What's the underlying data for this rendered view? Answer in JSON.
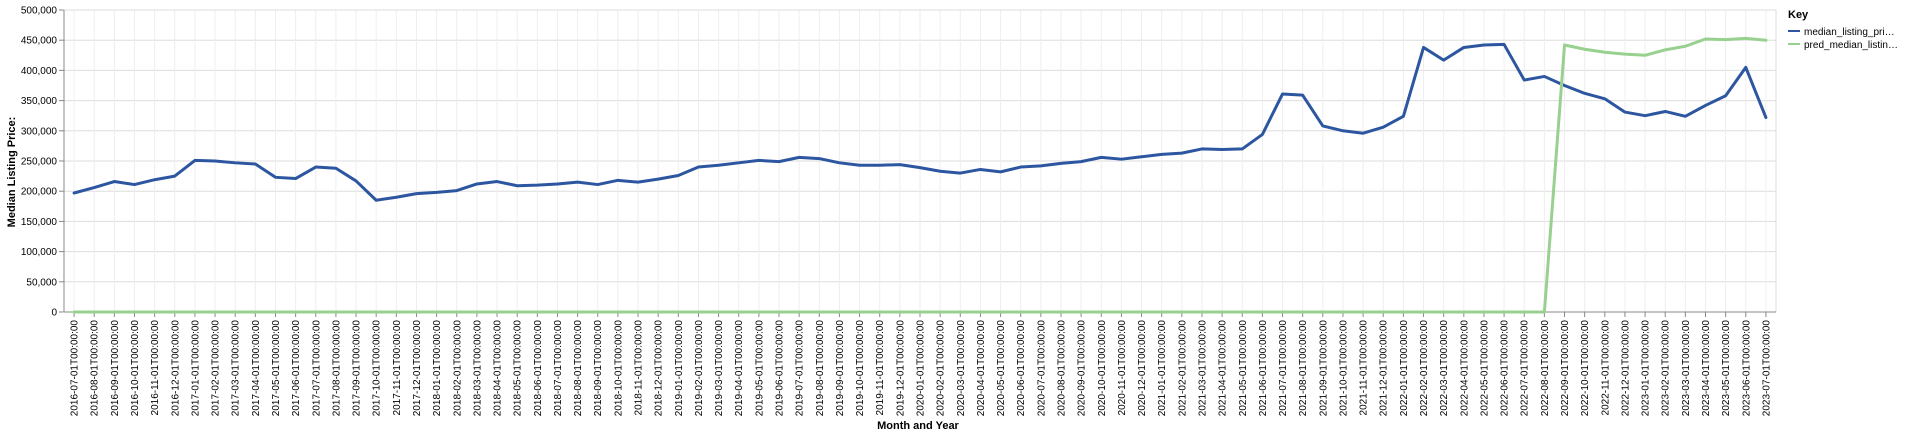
{
  "chart_data": {
    "type": "line",
    "xlabel": "Month and Year",
    "ylabel": "Median Listing Price:",
    "ylim": [
      0,
      500000
    ],
    "yticks": [
      "0",
      "50,000",
      "100,000",
      "150,000",
      "200,000",
      "250,000",
      "300,000",
      "350,000",
      "400,000",
      "450,000",
      "500,000"
    ],
    "grid": true,
    "legend": {
      "title": "Key",
      "position": "top-right",
      "entries": [
        "median_listing_pri…",
        "pred_median_listin…"
      ]
    },
    "x": [
      "2016-07-01T00:00:00",
      "2016-08-01T00:00:00",
      "2016-09-01T00:00:00",
      "2016-10-01T00:00:00",
      "2016-11-01T00:00:00",
      "2016-12-01T00:00:00",
      "2017-01-01T00:00:00",
      "2017-02-01T00:00:00",
      "2017-03-01T00:00:00",
      "2017-04-01T00:00:00",
      "2017-05-01T00:00:00",
      "2017-06-01T00:00:00",
      "2017-07-01T00:00:00",
      "2017-08-01T00:00:00",
      "2017-09-01T00:00:00",
      "2017-10-01T00:00:00",
      "2017-11-01T00:00:00",
      "2017-12-01T00:00:00",
      "2018-01-01T00:00:00",
      "2018-02-01T00:00:00",
      "2018-03-01T00:00:00",
      "2018-04-01T00:00:00",
      "2018-05-01T00:00:00",
      "2018-06-01T00:00:00",
      "2018-07-01T00:00:00",
      "2018-08-01T00:00:00",
      "2018-09-01T00:00:00",
      "2018-10-01T00:00:00",
      "2018-11-01T00:00:00",
      "2018-12-01T00:00:00",
      "2019-01-01T00:00:00",
      "2019-02-01T00:00:00",
      "2019-03-01T00:00:00",
      "2019-04-01T00:00:00",
      "2019-05-01T00:00:00",
      "2019-06-01T00:00:00",
      "2019-07-01T00:00:00",
      "2019-08-01T00:00:00",
      "2019-09-01T00:00:00",
      "2019-10-01T00:00:00",
      "2019-11-01T00:00:00",
      "2019-12-01T00:00:00",
      "2020-01-01T00:00:00",
      "2020-02-01T00:00:00",
      "2020-03-01T00:00:00",
      "2020-04-01T00:00:00",
      "2020-05-01T00:00:00",
      "2020-06-01T00:00:00",
      "2020-07-01T00:00:00",
      "2020-08-01T00:00:00",
      "2020-09-01T00:00:00",
      "2020-10-01T00:00:00",
      "2020-11-01T00:00:00",
      "2020-12-01T00:00:00",
      "2021-01-01T00:00:00",
      "2021-02-01T00:00:00",
      "2021-03-01T00:00:00",
      "2021-04-01T00:00:00",
      "2021-05-01T00:00:00",
      "2021-06-01T00:00:00",
      "2021-07-01T00:00:00",
      "2021-08-01T00:00:00",
      "2021-09-01T00:00:00",
      "2021-10-01T00:00:00",
      "2021-11-01T00:00:00",
      "2021-12-01T00:00:00",
      "2022-01-01T00:00:00",
      "2022-02-01T00:00:00",
      "2022-03-01T00:00:00",
      "2022-04-01T00:00:00",
      "2022-05-01T00:00:00",
      "2022-06-01T00:00:00",
      "2022-07-01T00:00:00",
      "2022-08-01T00:00:00",
      "2022-09-01T00:00:00",
      "2022-10-01T00:00:00",
      "2022-11-01T00:00:00",
      "2022-12-01T00:00:00",
      "2023-01-01T00:00:00",
      "2023-02-01T00:00:00",
      "2023-03-01T00:00:00",
      "2023-04-01T00:00:00",
      "2023-05-01T00:00:00",
      "2023-06-01T00:00:00",
      "2023-07-01T00:00:00"
    ],
    "series": [
      {
        "name": "median_listing_pri…",
        "color": "#2d56a0",
        "values": [
          197000,
          206000,
          216000,
          211000,
          219000,
          225000,
          251000,
          250000,
          247000,
          245000,
          223000,
          221000,
          240000,
          238000,
          217000,
          185000,
          190000,
          196000,
          198000,
          201000,
          212000,
          216000,
          209000,
          210000,
          212000,
          215000,
          211000,
          218000,
          215000,
          220000,
          226000,
          240000,
          243000,
          247000,
          251000,
          249000,
          256000,
          254000,
          247000,
          243000,
          243000,
          244000,
          239000,
          233000,
          230000,
          236000,
          232000,
          240000,
          242000,
          246000,
          249000,
          256000,
          253000,
          257000,
          261000,
          263000,
          270000,
          269000,
          270000,
          294000,
          361000,
          359000,
          308000,
          300000,
          296000,
          306000,
          324000,
          438000,
          417000,
          438000,
          442000,
          443000,
          384000,
          390000,
          375000,
          362000,
          353000,
          331000,
          325000,
          332000,
          324000,
          342000,
          358000,
          405000,
          322000
        ]
      },
      {
        "name": "pred_median_listin…",
        "color": "#98d18f",
        "values": [
          0,
          0,
          0,
          0,
          0,
          0,
          0,
          0,
          0,
          0,
          0,
          0,
          0,
          0,
          0,
          0,
          0,
          0,
          0,
          0,
          0,
          0,
          0,
          0,
          0,
          0,
          0,
          0,
          0,
          0,
          0,
          0,
          0,
          0,
          0,
          0,
          0,
          0,
          0,
          0,
          0,
          0,
          0,
          0,
          0,
          0,
          0,
          0,
          0,
          0,
          0,
          0,
          0,
          0,
          0,
          0,
          0,
          0,
          0,
          0,
          0,
          0,
          0,
          0,
          0,
          0,
          0,
          0,
          0,
          0,
          0,
          0,
          0,
          0,
          442000,
          435000,
          430000,
          427000,
          425000,
          434000,
          440000,
          452000,
          451000,
          453000,
          450000
        ]
      }
    ]
  }
}
